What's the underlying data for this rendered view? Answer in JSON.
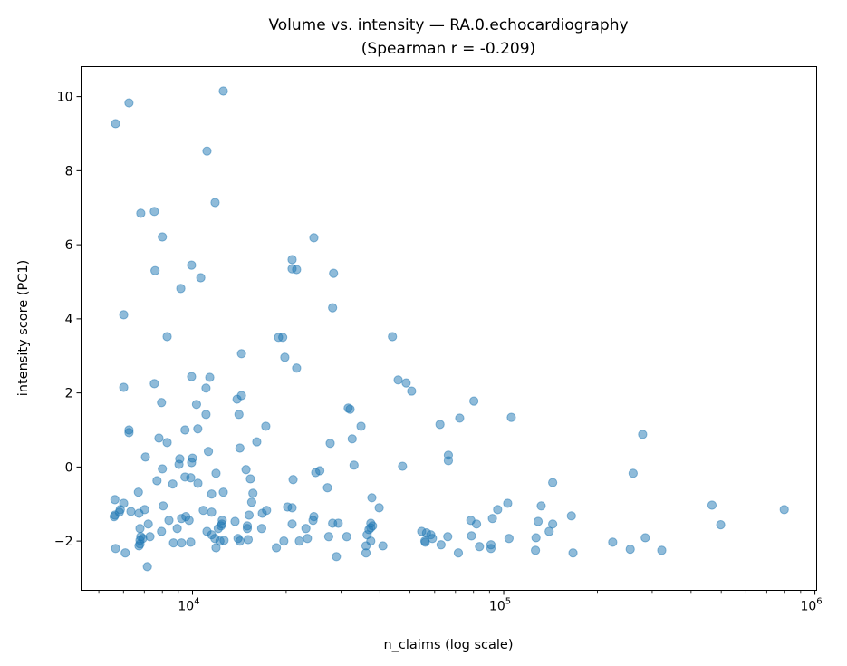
{
  "chart_data": {
    "type": "scatter",
    "title": "Volume vs. intensity — RA.0.echocardiography",
    "subtitle": "(Spearman r = -0.209)",
    "xlabel": "n_claims (log scale)",
    "ylabel": "intensity score (PC1)",
    "xscale": "log",
    "xlim": [
      4385,
      1013000
    ],
    "ylim": [
      -3.33,
      10.81
    ],
    "xticks": [
      {
        "value": 10000,
        "base": "10",
        "exp": "4"
      },
      {
        "value": 100000,
        "base": "10",
        "exp": "5"
      },
      {
        "value": 1000000,
        "base": "10",
        "exp": "6"
      }
    ],
    "yticks": [
      -2,
      0,
      2,
      4,
      6,
      8,
      10
    ],
    "grid": false,
    "marker_color": "#1f77b4",
    "marker_alpha": 0.5,
    "points": [
      [
        5660,
        9.27
      ],
      [
        6250,
        9.83
      ],
      [
        12560,
        10.15
      ],
      [
        11130,
        8.53
      ],
      [
        11820,
        7.14
      ],
      [
        6820,
        6.85
      ],
      [
        7540,
        6.9
      ],
      [
        8000,
        6.21
      ],
      [
        24550,
        6.19
      ],
      [
        20900,
        5.6
      ],
      [
        20900,
        5.35
      ],
      [
        21600,
        5.33
      ],
      [
        28400,
        5.23
      ],
      [
        9930,
        5.45
      ],
      [
        10630,
        5.11
      ],
      [
        7580,
        5.3
      ],
      [
        9170,
        4.82
      ],
      [
        6010,
        4.11
      ],
      [
        28200,
        4.3
      ],
      [
        8290,
        3.52
      ],
      [
        18900,
        3.5
      ],
      [
        19500,
        3.5
      ],
      [
        43900,
        3.52
      ],
      [
        14370,
        3.06
      ],
      [
        19800,
        2.96
      ],
      [
        21600,
        2.67
      ],
      [
        45800,
        2.35
      ],
      [
        48600,
        2.27
      ],
      [
        50600,
        2.05
      ],
      [
        6010,
        2.15
      ],
      [
        7540,
        2.25
      ],
      [
        9930,
        2.44
      ],
      [
        11360,
        2.42
      ],
      [
        11050,
        2.13
      ],
      [
        7950,
        1.74
      ],
      [
        10300,
        1.69
      ],
      [
        13900,
        1.83
      ],
      [
        14370,
        1.93
      ],
      [
        32100,
        1.56
      ],
      [
        31650,
        1.59
      ],
      [
        80200,
        1.78
      ],
      [
        14100,
        1.42
      ],
      [
        11050,
        1.42
      ],
      [
        10400,
        1.03
      ],
      [
        9460,
        1.0
      ],
      [
        6250,
        1.0
      ],
      [
        6250,
        0.93
      ],
      [
        17200,
        1.1
      ],
      [
        34800,
        1.1
      ],
      [
        62400,
        1.15
      ],
      [
        72200,
        1.32
      ],
      [
        105800,
        1.34
      ],
      [
        279500,
        0.88
      ],
      [
        7800,
        0.78
      ],
      [
        8290,
        0.66
      ],
      [
        11250,
        0.42
      ],
      [
        7060,
        0.27
      ],
      [
        9100,
        0.22
      ],
      [
        10000,
        0.24
      ],
      [
        14200,
        0.51
      ],
      [
        16090,
        0.68
      ],
      [
        27700,
        0.64
      ],
      [
        32600,
        0.76
      ],
      [
        66400,
        0.32
      ],
      [
        66400,
        0.17
      ],
      [
        33040,
        0.05
      ],
      [
        47300,
        0.02
      ],
      [
        9050,
        0.07
      ],
      [
        9930,
        0.12
      ],
      [
        8000,
        -0.05
      ],
      [
        14860,
        -0.07
      ],
      [
        11900,
        -0.17
      ],
      [
        24880,
        -0.15
      ],
      [
        25660,
        -0.1
      ],
      [
        15350,
        -0.32
      ],
      [
        21050,
        -0.34
      ],
      [
        7690,
        -0.37
      ],
      [
        8640,
        -0.46
      ],
      [
        9460,
        -0.27
      ],
      [
        9870,
        -0.29
      ],
      [
        10410,
        -0.44
      ],
      [
        6700,
        -0.68
      ],
      [
        27150,
        -0.56
      ],
      [
        12560,
        -0.68
      ],
      [
        11520,
        -0.73
      ],
      [
        143700,
        -0.42
      ],
      [
        260500,
        -0.17
      ],
      [
        37700,
        -0.83
      ],
      [
        15640,
        -0.71
      ],
      [
        5630,
        -0.88
      ],
      [
        6010,
        -0.98
      ],
      [
        15500,
        -0.95
      ],
      [
        8050,
        -1.05
      ],
      [
        103000,
        -0.98
      ],
      [
        132000,
        -1.05
      ],
      [
        467000,
        -1.03
      ],
      [
        797000,
        -1.15
      ],
      [
        95600,
        -1.15
      ],
      [
        39800,
        -1.1
      ],
      [
        20200,
        -1.08
      ],
      [
        20900,
        -1.1
      ],
      [
        5860,
        -1.15
      ],
      [
        5820,
        -1.22
      ],
      [
        6340,
        -1.2
      ],
      [
        7020,
        -1.15
      ],
      [
        6730,
        -1.25
      ],
      [
        5630,
        -1.3
      ],
      [
        5600,
        -1.34
      ],
      [
        9520,
        -1.34
      ],
      [
        9220,
        -1.39
      ],
      [
        10830,
        -1.17
      ],
      [
        11520,
        -1.22
      ],
      [
        16760,
        -1.25
      ],
      [
        17300,
        -1.17
      ],
      [
        13700,
        -1.47
      ],
      [
        15200,
        -1.3
      ],
      [
        24550,
        -1.34
      ],
      [
        24400,
        -1.44
      ],
      [
        9750,
        -1.44
      ],
      [
        8400,
        -1.44
      ],
      [
        12460,
        -1.44
      ],
      [
        78400,
        -1.44
      ],
      [
        81800,
        -1.54
      ],
      [
        92000,
        -1.39
      ],
      [
        129000,
        -1.47
      ],
      [
        143700,
        -1.54
      ],
      [
        165000,
        -1.32
      ],
      [
        498000,
        -1.56
      ],
      [
        7210,
        -1.54
      ],
      [
        12430,
        -1.54
      ],
      [
        16690,
        -1.66
      ],
      [
        15000,
        -1.59
      ],
      [
        15000,
        -1.66
      ],
      [
        20900,
        -1.54
      ],
      [
        23140,
        -1.66
      ],
      [
        28200,
        -1.52
      ],
      [
        29400,
        -1.52
      ],
      [
        37400,
        -1.52
      ],
      [
        37400,
        -1.64
      ],
      [
        37900,
        -1.59
      ],
      [
        36900,
        -1.69
      ],
      [
        6780,
        -1.66
      ],
      [
        7950,
        -1.74
      ],
      [
        8930,
        -1.66
      ],
      [
        11130,
        -1.74
      ],
      [
        12100,
        -1.66
      ],
      [
        12350,
        -1.59
      ],
      [
        54500,
        -1.74
      ],
      [
        56500,
        -1.78
      ],
      [
        58300,
        -1.83
      ],
      [
        140000,
        -1.74
      ],
      [
        6820,
        -1.88
      ],
      [
        6920,
        -1.93
      ],
      [
        7300,
        -1.88
      ],
      [
        11520,
        -1.83
      ],
      [
        11800,
        -1.93
      ],
      [
        14000,
        -1.93
      ],
      [
        14200,
        -2.0
      ],
      [
        15100,
        -1.96
      ],
      [
        19660,
        -2.0
      ],
      [
        22050,
        -2.0
      ],
      [
        23400,
        -1.93
      ],
      [
        27400,
        -1.88
      ],
      [
        31300,
        -1.88
      ],
      [
        36400,
        -1.83
      ],
      [
        37400,
        -2.0
      ],
      [
        59000,
        -1.93
      ],
      [
        66100,
        -1.88
      ],
      [
        78800,
        -1.86
      ],
      [
        104000,
        -1.93
      ],
      [
        127000,
        -1.91
      ],
      [
        285000,
        -1.91
      ],
      [
        55800,
        -2.0
      ],
      [
        56000,
        -2.03
      ],
      [
        6780,
        -1.98
      ],
      [
        6780,
        -2.08
      ],
      [
        6730,
        -2.13
      ],
      [
        8690,
        -2.05
      ],
      [
        9220,
        -2.05
      ],
      [
        9870,
        -2.03
      ],
      [
        12250,
        -2.0
      ],
      [
        12630,
        -1.98
      ],
      [
        40900,
        -2.13
      ],
      [
        62900,
        -2.1
      ],
      [
        83600,
        -2.15
      ],
      [
        91000,
        -2.1
      ],
      [
        91000,
        -2.2
      ],
      [
        224000,
        -2.03
      ],
      [
        18600,
        -2.18
      ],
      [
        11900,
        -2.18
      ],
      [
        36100,
        -2.13
      ],
      [
        36100,
        -2.32
      ],
      [
        71500,
        -2.32
      ],
      [
        126500,
        -2.25
      ],
      [
        255000,
        -2.22
      ],
      [
        322000,
        -2.25
      ],
      [
        167000,
        -2.32
      ],
      [
        5660,
        -2.2
      ],
      [
        6080,
        -2.32
      ],
      [
        29000,
        -2.42
      ],
      [
        7160,
        -2.69
      ]
    ]
  }
}
